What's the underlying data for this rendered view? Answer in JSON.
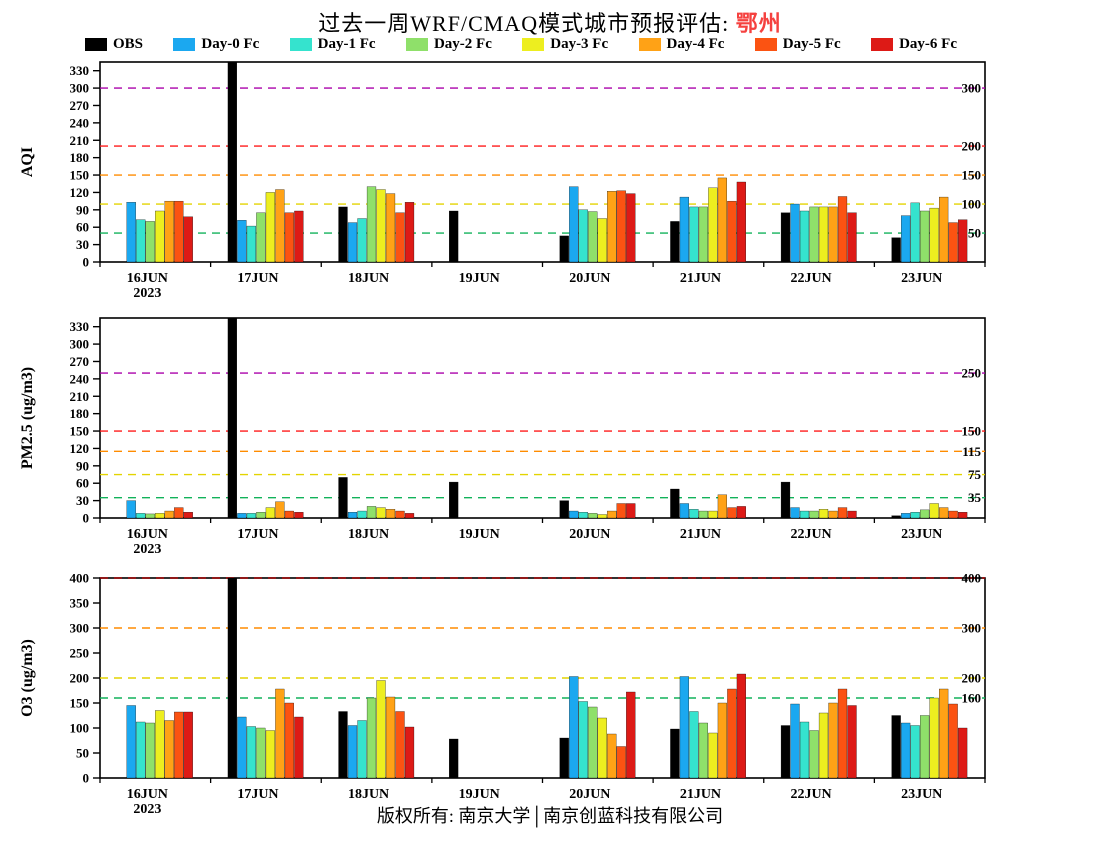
{
  "title": {
    "prefix": "过去一周WRF/CMAQ模式城市预报评估: ",
    "city": "鄂州",
    "city_color": "#f5413f"
  },
  "footer": "版权所有: 南京大学│南京创蓝科技有限公司",
  "legend": [
    {
      "label": "OBS",
      "color": "#000000"
    },
    {
      "label": "Day-0 Fc",
      "color": "#1BA8F0"
    },
    {
      "label": "Day-1 Fc",
      "color": "#35E3CE"
    },
    {
      "label": "Day-2 Fc",
      "color": "#8FE06A"
    },
    {
      "label": "Day-3 Fc",
      "color": "#EDEE1F"
    },
    {
      "label": "Day-4 Fc",
      "color": "#FFA216"
    },
    {
      "label": "Day-5 Fc",
      "color": "#FB5312"
    },
    {
      "label": "Day-6 Fc",
      "color": "#DD1A16"
    }
  ],
  "chart_data": [
    {
      "type": "bar",
      "ylabel": "AQI",
      "ylim": [
        0,
        345
      ],
      "yticks": [
        0,
        30,
        60,
        90,
        120,
        150,
        180,
        210,
        240,
        270,
        300,
        330
      ],
      "categories": [
        "16JUN",
        "17JUN",
        "18JUN",
        "19JUN",
        "20JUN",
        "21JUN",
        "22JUN",
        "23JUN"
      ],
      "year_label": "2023",
      "ref_lines": [
        {
          "value": 50,
          "color": "#11B25A",
          "label": "50"
        },
        {
          "value": 100,
          "color": "#E3D400",
          "label": "100"
        },
        {
          "value": 150,
          "color": "#FF8C00",
          "label": "150"
        },
        {
          "value": 200,
          "color": "#FF1A1A",
          "label": "200"
        },
        {
          "value": 300,
          "color": "#AA00AA",
          "label": "300"
        }
      ],
      "series": [
        {
          "name": "OBS",
          "values": [
            null,
            345,
            95,
            88,
            45,
            70,
            85,
            42
          ]
        },
        {
          "name": "Day-0 Fc",
          "values": [
            103,
            72,
            68,
            null,
            130,
            112,
            100,
            80
          ]
        },
        {
          "name": "Day-1 Fc",
          "values": [
            73,
            62,
            75,
            null,
            90,
            95,
            88,
            102
          ]
        },
        {
          "name": "Day-2 Fc",
          "values": [
            70,
            85,
            130,
            null,
            87,
            95,
            95,
            88
          ]
        },
        {
          "name": "Day-3 Fc",
          "values": [
            88,
            120,
            125,
            null,
            75,
            128,
            95,
            93
          ]
        },
        {
          "name": "Day-4 Fc",
          "values": [
            105,
            125,
            118,
            null,
            122,
            145,
            95,
            112
          ]
        },
        {
          "name": "Day-5 Fc",
          "values": [
            105,
            85,
            85,
            null,
            123,
            105,
            113,
            68
          ]
        },
        {
          "name": "Day-6 Fc",
          "values": [
            78,
            88,
            103,
            null,
            118,
            138,
            85,
            73
          ]
        }
      ]
    },
    {
      "type": "bar",
      "ylabel": "PM2.5 (ug/m3)",
      "ylim": [
        0,
        345
      ],
      "yticks": [
        0,
        30,
        60,
        90,
        120,
        150,
        180,
        210,
        240,
        270,
        300,
        330
      ],
      "categories": [
        "16JUN",
        "17JUN",
        "18JUN",
        "19JUN",
        "20JUN",
        "21JUN",
        "22JUN",
        "23JUN"
      ],
      "year_label": "2023",
      "ref_lines": [
        {
          "value": 35,
          "color": "#11B25A",
          "label": "35"
        },
        {
          "value": 75,
          "color": "#E3D400",
          "label": "75"
        },
        {
          "value": 115,
          "color": "#FF8C00",
          "label": "115"
        },
        {
          "value": 150,
          "color": "#FF1A1A",
          "label": "150"
        },
        {
          "value": 250,
          "color": "#AA00AA",
          "label": "250"
        }
      ],
      "series": [
        {
          "name": "OBS",
          "values": [
            null,
            345,
            70,
            62,
            30,
            50,
            62,
            4
          ]
        },
        {
          "name": "Day-0 Fc",
          "values": [
            30,
            8,
            10,
            null,
            12,
            25,
            18,
            8
          ]
        },
        {
          "name": "Day-1 Fc",
          "values": [
            8,
            8,
            12,
            null,
            10,
            15,
            12,
            10
          ]
        },
        {
          "name": "Day-2 Fc",
          "values": [
            7,
            10,
            20,
            null,
            8,
            12,
            12,
            14
          ]
        },
        {
          "name": "Day-3 Fc",
          "values": [
            8,
            18,
            18,
            null,
            6,
            12,
            15,
            25
          ]
        },
        {
          "name": "Day-4 Fc",
          "values": [
            12,
            28,
            15,
            null,
            12,
            40,
            12,
            18
          ]
        },
        {
          "name": "Day-5 Fc",
          "values": [
            18,
            12,
            12,
            null,
            25,
            18,
            18,
            12
          ]
        },
        {
          "name": "Day-6 Fc",
          "values": [
            10,
            10,
            8,
            null,
            25,
            20,
            12,
            10
          ]
        }
      ]
    },
    {
      "type": "bar",
      "ylabel": "O3 (ug/m3)",
      "ylim": [
        0,
        400
      ],
      "yticks": [
        0,
        50,
        100,
        150,
        200,
        250,
        300,
        350,
        400
      ],
      "categories": [
        "16JUN",
        "17JUN",
        "18JUN",
        "19JUN",
        "20JUN",
        "21JUN",
        "22JUN",
        "23JUN"
      ],
      "year_label": "2023",
      "ref_lines": [
        {
          "value": 160,
          "color": "#11B25A",
          "label": "160"
        },
        {
          "value": 200,
          "color": "#E3D400",
          "label": "200"
        },
        {
          "value": 300,
          "color": "#FF8C00",
          "label": "300"
        },
        {
          "value": 400,
          "color": "#A00000",
          "label": "400"
        }
      ],
      "series": [
        {
          "name": "OBS",
          "values": [
            null,
            400,
            133,
            78,
            80,
            98,
            105,
            125
          ]
        },
        {
          "name": "Day-0 Fc",
          "values": [
            145,
            122,
            105,
            null,
            203,
            203,
            148,
            110
          ]
        },
        {
          "name": "Day-1 Fc",
          "values": [
            112,
            103,
            115,
            null,
            153,
            133,
            112,
            105
          ]
        },
        {
          "name": "Day-2 Fc",
          "values": [
            110,
            100,
            160,
            null,
            142,
            110,
            95,
            125
          ]
        },
        {
          "name": "Day-3 Fc",
          "values": [
            135,
            95,
            195,
            null,
            120,
            90,
            130,
            160
          ]
        },
        {
          "name": "Day-4 Fc",
          "values": [
            115,
            178,
            162,
            null,
            88,
            150,
            150,
            178
          ]
        },
        {
          "name": "Day-5 Fc",
          "values": [
            132,
            150,
            133,
            null,
            63,
            178,
            178,
            148
          ]
        },
        {
          "name": "Day-6 Fc",
          "values": [
            132,
            122,
            102,
            null,
            172,
            208,
            145,
            100
          ]
        }
      ]
    }
  ]
}
